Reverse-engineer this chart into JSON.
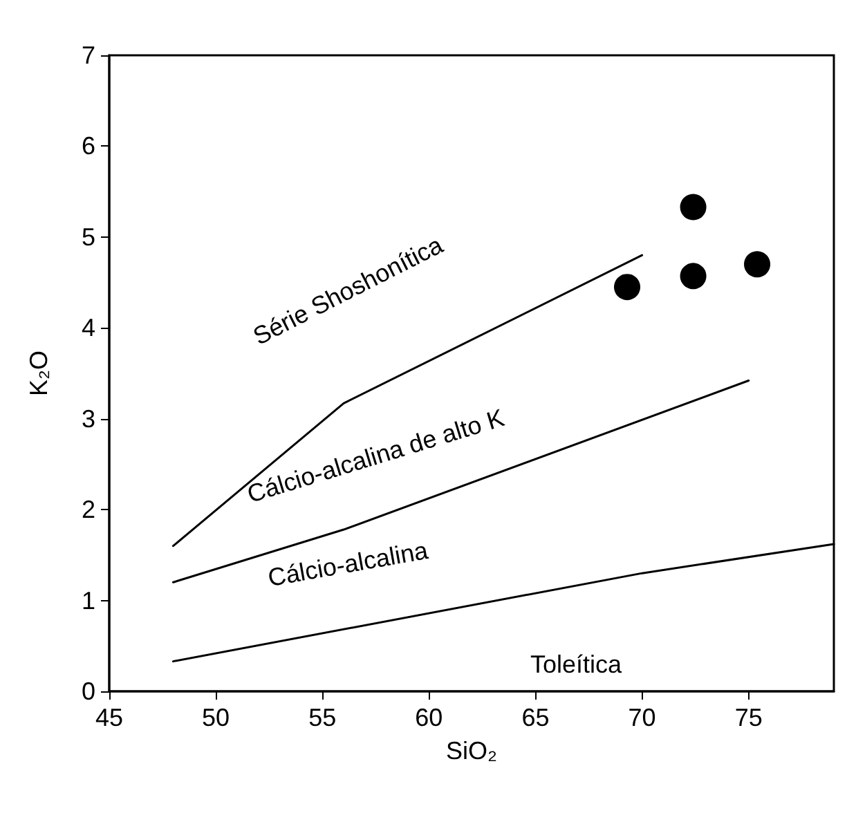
{
  "chart_data": {
    "type": "scatter",
    "xlabel": "SiO₂",
    "ylabel": "K₂O",
    "xlim": [
      45,
      79
    ],
    "xticks": [
      45,
      50,
      55,
      60,
      65,
      70,
      75
    ],
    "ylim": [
      0,
      7
    ],
    "yticks": [
      0,
      1,
      2,
      3,
      4,
      5,
      6,
      7
    ],
    "grid": false,
    "marker": "circle",
    "series": [
      {
        "type": "line",
        "color": "#000000",
        "x": [
          48,
          56,
          70
        ],
        "values": [
          1.6,
          3.17,
          4.8
        ],
        "marker": "none"
      },
      {
        "type": "line",
        "color": "#000000",
        "x": [
          48,
          56,
          75
        ],
        "values": [
          1.2,
          1.78,
          3.42
        ],
        "marker": "none"
      },
      {
        "type": "line",
        "color": "#000000",
        "x": [
          48,
          70,
          79
        ],
        "values": [
          0.33,
          1.3,
          1.62
        ],
        "marker": "none"
      },
      {
        "color": "#000000",
        "x": [
          69.3,
          72.4,
          72.4,
          75.4
        ],
        "values": [
          4.45,
          5.33,
          4.57,
          4.7
        ]
      }
    ],
    "annotations": [
      "Série Shoshonítica",
      "Cálcio-alcalina de alto K",
      "Cálcio-alcalina",
      "Toleítica"
    ]
  }
}
